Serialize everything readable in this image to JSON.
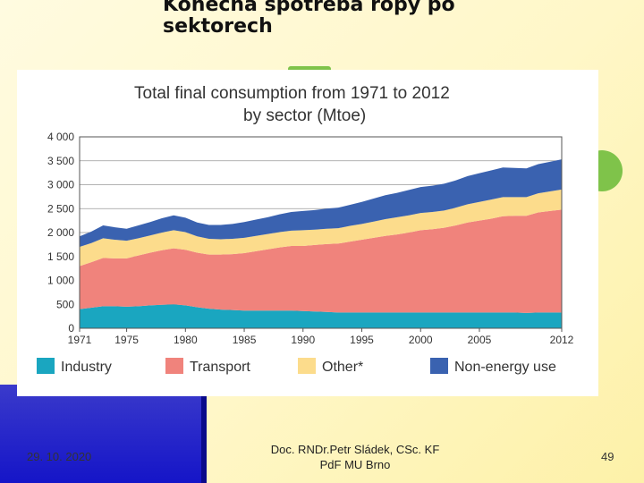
{
  "slide": {
    "title": "Konečná spotřeba ropy po sektorech",
    "footer_date": "29. 10. 2020",
    "footer_author_line1": "Doc. RNDr.Petr Sládek, CSc. KF",
    "footer_author_line2": "PdF MU Brno",
    "page_number": "49"
  },
  "chart_data": {
    "type": "area",
    "title": "Total final consumption from 1971 to 2012",
    "subtitle": "by sector (Mtoe)",
    "x": [
      1971,
      1972,
      1973,
      1974,
      1975,
      1976,
      1977,
      1978,
      1979,
      1980,
      1981,
      1982,
      1983,
      1984,
      1985,
      1986,
      1987,
      1988,
      1989,
      1990,
      1991,
      1992,
      1993,
      1994,
      1995,
      1996,
      1997,
      1998,
      1999,
      2000,
      2001,
      2002,
      2003,
      2004,
      2005,
      2006,
      2007,
      2008,
      2009,
      2010,
      2011,
      2012
    ],
    "x_tick_labels": [
      "1971",
      "1975",
      "1980",
      "1985",
      "1990",
      "1995",
      "2000",
      "2005",
      "2012"
    ],
    "y_tick_labels": [
      "0",
      "500",
      "1 000",
      "1 500",
      "2 000",
      "2 500",
      "3 000",
      "3 500",
      "4 000"
    ],
    "ylim": [
      0,
      4000
    ],
    "stacked": true,
    "series": [
      {
        "name": "Industry",
        "color": "#1aa6c0",
        "values": [
          400,
          430,
          460,
          460,
          450,
          460,
          480,
          490,
          500,
          480,
          440,
          410,
          390,
          380,
          370,
          370,
          370,
          370,
          370,
          360,
          350,
          340,
          330,
          330,
          330,
          330,
          330,
          330,
          330,
          330,
          330,
          330,
          330,
          330,
          330,
          330,
          330,
          330,
          320,
          330,
          330,
          330
        ]
      },
      {
        "name": "Transport",
        "color": "#f0837c",
        "values": [
          900,
          950,
          1010,
          1000,
          1010,
          1060,
          1100,
          1140,
          1170,
          1160,
          1140,
          1130,
          1150,
          1170,
          1200,
          1240,
          1280,
          1320,
          1350,
          1360,
          1390,
          1420,
          1440,
          1480,
          1520,
          1560,
          1600,
          1630,
          1670,
          1720,
          1740,
          1770,
          1820,
          1880,
          1920,
          1960,
          2010,
          2020,
          2030,
          2090,
          2120,
          2150
        ]
      },
      {
        "name": "Other*",
        "color": "#fcdc8c",
        "values": [
          400,
          400,
          410,
          390,
          370,
          360,
          360,
          370,
          380,
          370,
          340,
          330,
          320,
          320,
          320,
          320,
          320,
          320,
          320,
          330,
          320,
          320,
          320,
          330,
          330,
          340,
          350,
          360,
          360,
          360,
          360,
          360,
          370,
          380,
          390,
          400,
          400,
          390,
          390,
          400,
          410,
          420
        ]
      },
      {
        "name": "Non-energy use",
        "color": "#3a62b0",
        "values": [
          220,
          240,
          270,
          260,
          250,
          270,
          280,
          300,
          310,
          300,
          290,
          290,
          300,
          310,
          330,
          340,
          350,
          370,
          390,
          400,
          410,
          420,
          430,
          440,
          460,
          480,
          500,
          510,
          530,
          540,
          550,
          560,
          570,
          590,
          600,
          610,
          620,
          610,
          600,
          610,
          620,
          630
        ]
      }
    ]
  }
}
